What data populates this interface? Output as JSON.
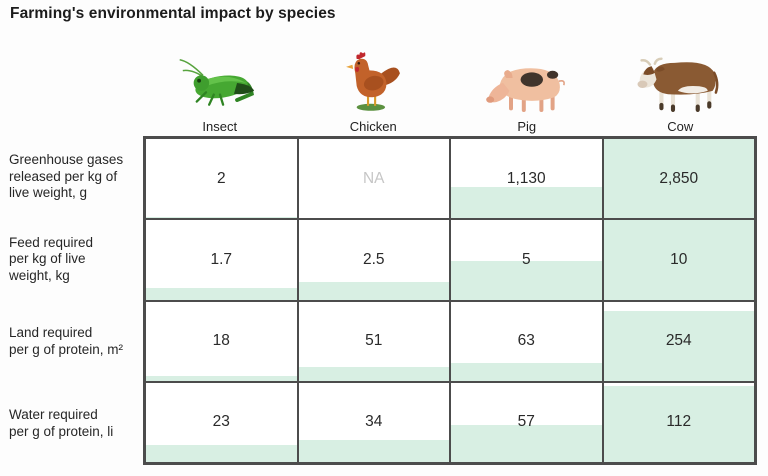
{
  "title": "Farming's environmental impact by species",
  "colors": {
    "cell_fill_green": "#d8efe3",
    "grid_border": "#4c4c4c",
    "na_text": "#c6c6c6",
    "value_text": "#2a2a2a"
  },
  "columns": [
    {
      "id": "insect",
      "label": "Insect",
      "icon": "grasshopper-icon"
    },
    {
      "id": "chicken",
      "label": "Chicken",
      "icon": "chicken-icon"
    },
    {
      "id": "pig",
      "label": "Pig",
      "icon": "pig-icon"
    },
    {
      "id": "cow",
      "label": "Cow",
      "icon": "cow-icon"
    }
  ],
  "rows": [
    {
      "id": "greenhouse-gases",
      "label_lines": [
        "Greenhouse gases",
        "released per kg of",
        "live weight, g"
      ],
      "values": [
        "2",
        "NA",
        "1,130",
        "2,850"
      ],
      "fill_percent": [
        2,
        0,
        40,
        100
      ]
    },
    {
      "id": "feed-required",
      "label_lines": [
        "Feed required",
        "per kg of live",
        "weight, kg"
      ],
      "values": [
        "1.7",
        "2.5",
        "5",
        "10"
      ],
      "fill_percent": [
        15,
        22,
        48,
        100
      ]
    },
    {
      "id": "land-required",
      "label_lines": [
        "Land required",
        "per g of protein, m²"
      ],
      "values": [
        "18",
        "51",
        "63",
        "254"
      ],
      "fill_percent": [
        6,
        18,
        22,
        88
      ]
    },
    {
      "id": "water-required",
      "label_lines": [
        "Water required",
        "per g of protein, li"
      ],
      "values": [
        "23",
        "34",
        "57",
        "112"
      ],
      "fill_percent": [
        22,
        28,
        47,
        96
      ]
    }
  ],
  "chart_data": {
    "type": "table",
    "title": "Farming's environmental impact by species",
    "categories": [
      "Insect",
      "Chicken",
      "Pig",
      "Cow"
    ],
    "series": [
      {
        "name": "Greenhouse gases released per kg of live weight, g",
        "values": [
          2,
          null,
          1130,
          2850
        ]
      },
      {
        "name": "Feed required per kg of live weight, kg",
        "values": [
          1.7,
          2.5,
          5,
          10
        ]
      },
      {
        "name": "Land required per g of protein, m²",
        "values": [
          18,
          51,
          63,
          254
        ]
      },
      {
        "name": "Water required per g of protein, li",
        "values": [
          23,
          34,
          57,
          112
        ]
      }
    ],
    "annotations": [
      "NA shown for Chicken greenhouse gases"
    ],
    "layout": "matrix table; each cell shaded green from the bottom proportional to the value within its row (Cow column fully shaded)"
  }
}
